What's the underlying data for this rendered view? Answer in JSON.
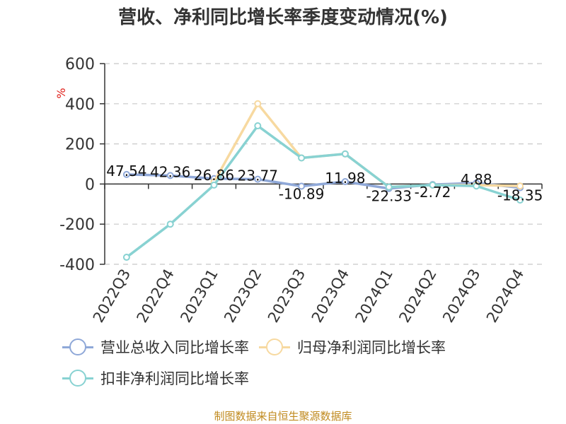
{
  "chart_data": {
    "type": "line",
    "title": "营收、净利同比增长率季度变动情况(%)",
    "ylabel": "%",
    "ylim": [
      -400,
      600
    ],
    "yticks": [
      600,
      400,
      200,
      0,
      -200,
      -400
    ],
    "grid": true,
    "legend_position": "bottom",
    "categories": [
      "2022Q3",
      "2022Q4",
      "2023Q1",
      "2023Q2",
      "2023Q3",
      "2023Q4",
      "2024Q1",
      "2024Q2",
      "2024Q3",
      "2024Q4"
    ],
    "series": [
      {
        "name": "营业总收入同比增长率",
        "color": "#8fa8d8",
        "values": [
          47.54,
          42.36,
          26.86,
          23.77,
          -10.89,
          11.98,
          -22.33,
          -2.72,
          4.88,
          -18.35
        ],
        "labels": [
          "47.54",
          "42.36",
          "26.86",
          "23.77",
          "-10.89",
          "11.98",
          "-22.33",
          "-2.72",
          "4.88",
          "-18.35"
        ]
      },
      {
        "name": "归母净利润同比增长率",
        "color": "#f7d9a0",
        "values": [
          null,
          null,
          10,
          400,
          130,
          150,
          -15,
          -5,
          -5,
          -10
        ]
      },
      {
        "name": "扣非净利润同比增长率",
        "color": "#88d2d2",
        "values": [
          -365,
          -200,
          -5,
          290,
          130,
          150,
          -15,
          -5,
          -10,
          -80
        ]
      }
    ]
  },
  "footer": {
    "source": "制图数据来自恒生聚源数据库"
  }
}
